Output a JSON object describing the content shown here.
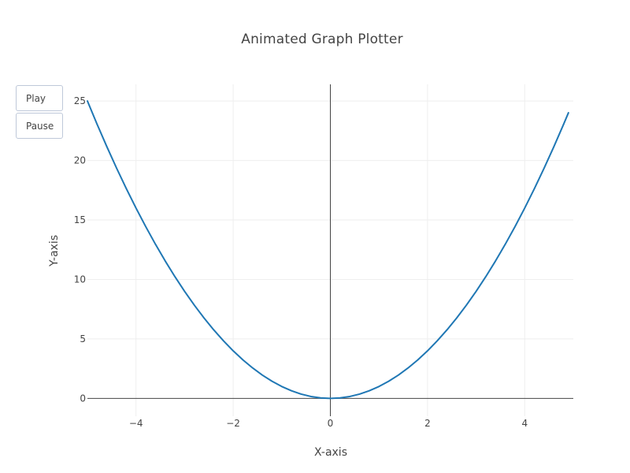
{
  "chart_data": {
    "type": "line",
    "title": "Animated Graph Plotter",
    "xlabel": "X-axis",
    "ylabel": "Y-axis",
    "xlim": [
      -5,
      5
    ],
    "ylim": [
      -1.5,
      26.4
    ],
    "grid": true,
    "x_ticks": [
      -4,
      -2,
      0,
      2,
      4
    ],
    "x_tick_labels": [
      "−4",
      "−2",
      "0",
      "2",
      "4"
    ],
    "y_ticks": [
      0,
      5,
      10,
      15,
      20,
      25
    ],
    "y_tick_labels": [
      "0",
      "5",
      "10",
      "15",
      "20",
      "25"
    ],
    "series": [
      {
        "color": "#1f77b4",
        "x": [
          -5,
          -4.8,
          -4.6,
          -4.4,
          -4.2,
          -4,
          -3.8,
          -3.6,
          -3.4,
          -3.2,
          -3,
          -2.8,
          -2.6,
          -2.4,
          -2.2,
          -2,
          -1.8,
          -1.6,
          -1.4,
          -1.2,
          -1,
          -0.8,
          -0.6,
          -0.4,
          -0.2,
          0,
          0.2,
          0.4,
          0.6,
          0.8,
          1,
          1.2,
          1.4,
          1.6,
          1.8,
          2,
          2.2,
          2.4,
          2.6,
          2.8,
          3,
          3.2,
          3.4,
          3.6,
          3.8,
          4,
          4.2,
          4.4,
          4.6,
          4.8,
          4.9
        ],
        "y": [
          25,
          23.04,
          21.16,
          19.36,
          17.64,
          16,
          14.44,
          12.96,
          11.56,
          10.24,
          9,
          7.84,
          6.76,
          5.76,
          4.84,
          4,
          3.24,
          2.56,
          1.96,
          1.44,
          1,
          0.64,
          0.36,
          0.16,
          0.04,
          0,
          0.04,
          0.16,
          0.36,
          0.64,
          1,
          1.44,
          1.96,
          2.56,
          3.24,
          4,
          4.84,
          5.76,
          6.76,
          7.84,
          9,
          10.24,
          11.56,
          12.96,
          14.44,
          16,
          17.64,
          19.36,
          21.16,
          23.04,
          24.01
        ]
      }
    ]
  },
  "controls": {
    "play_label": "Play",
    "pause_label": "Pause"
  }
}
